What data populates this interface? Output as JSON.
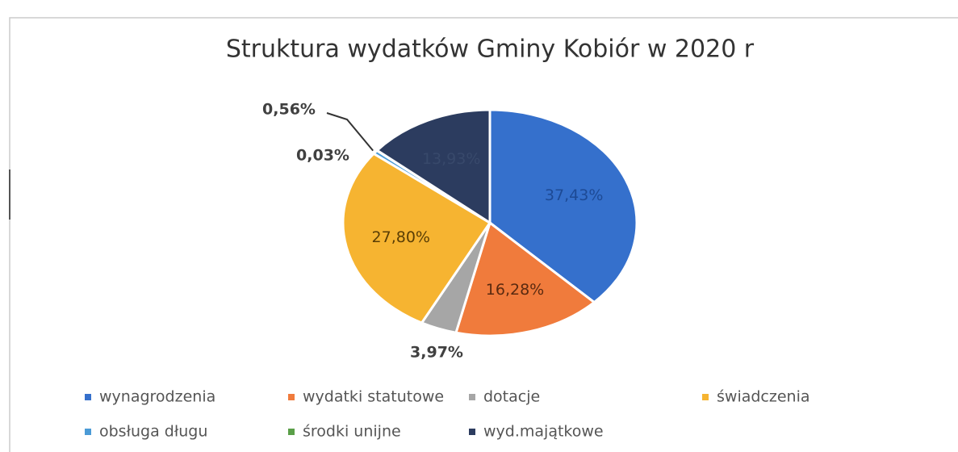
{
  "chart_data": {
    "type": "pie",
    "title": "Struktura wydatków Gminy Kobiór w 2020 r",
    "categories": [
      "wynagrodzenia",
      "wydatki statutowe",
      "dotacje",
      "świadczenia",
      "obsługa długu",
      "środki unijne",
      "wyd.majątkowe"
    ],
    "values": [
      37.43,
      16.28,
      3.97,
      27.8,
      0.56,
      0.03,
      13.93
    ],
    "value_labels": [
      "37,43%",
      "16,28%",
      "3,97%",
      "27,80%",
      "0,56%",
      "0,03%",
      "13,93%"
    ],
    "colors": [
      "#3570cc",
      "#f07b3c",
      "#a6a6a6",
      "#f6b431",
      "#4b9bd6",
      "#5a9f48",
      "#2c3c5f"
    ],
    "legend": "bottom"
  }
}
